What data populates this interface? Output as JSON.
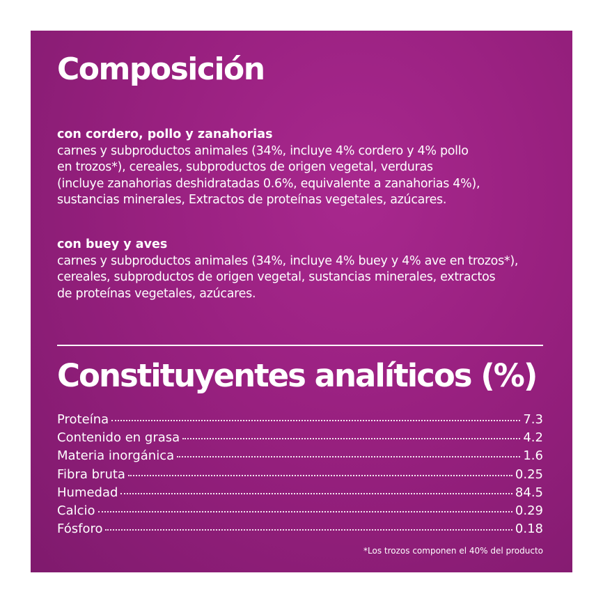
{
  "colors": {
    "panel_background": "#98207f",
    "text": "#ffffff"
  },
  "composition": {
    "title": "Composición",
    "variants": [
      {
        "heading": "con cordero, pollo y zanahorias",
        "lines": [
          "carnes y subproductos animales (34%, incluye 4% cordero y 4% pollo",
          "en trozos*), cereales, subproductos de origen vegetal, verduras",
          "(incluye zanahorias deshidratadas 0.6%, equivalente a zanahorias 4%),",
          "sustancias minerales, Extractos de proteínas vegetales, azúcares."
        ]
      },
      {
        "heading": "con buey y aves",
        "lines": [
          "carnes y subproductos animales (34%, incluye 4% buey y 4% ave en trozos*),",
          "cereales, subproductos de origen vegetal, sustancias minerales, extractos",
          "de proteínas vegetales, azúcares."
        ]
      }
    ]
  },
  "analytical": {
    "title": "Constituyentes analíticos (%)",
    "rows": [
      {
        "label": "Proteína",
        "value": "7.3"
      },
      {
        "label": "Contenido en grasa",
        "value": "4.2"
      },
      {
        "label": "Materia inorgánica",
        "value": "1.6"
      },
      {
        "label": "Fibra bruta",
        "value": "0.25"
      },
      {
        "label": "Humedad",
        "value": "84.5"
      },
      {
        "label": "Calcio",
        "value": "0.29"
      },
      {
        "label": "Fósforo",
        "value": "0.18"
      }
    ]
  },
  "footnote": "*Los trozos componen el 40% del producto"
}
